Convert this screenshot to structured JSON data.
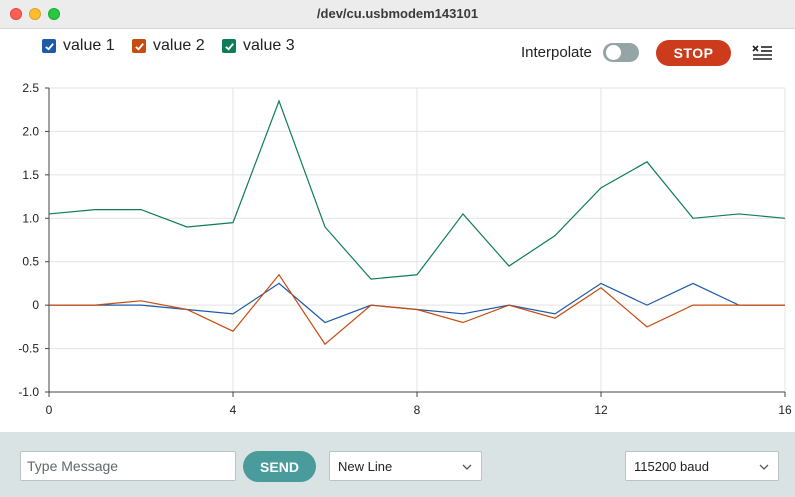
{
  "window": {
    "title": "/dev/cu.usbmodem143101"
  },
  "legend": [
    {
      "label": "value 1",
      "color": "#1d5aa8",
      "checked": true
    },
    {
      "label": "value 2",
      "color": "#c74c12",
      "checked": true
    },
    {
      "label": "value 3",
      "color": "#0e7d57",
      "checked": true
    }
  ],
  "toolbar": {
    "interpolate_label": "Interpolate",
    "interpolate_on": false,
    "stop_label": "STOP",
    "clear_icon": "clear-output-icon"
  },
  "chart_data": {
    "type": "line",
    "xlim": [
      0,
      16
    ],
    "ylim": [
      -1.0,
      2.5
    ],
    "x_ticks": [
      "0",
      "4",
      "8",
      "12",
      "16"
    ],
    "y_ticks": [
      "2.5",
      "2.0",
      "1.5",
      "1.0",
      "0.5",
      "0",
      "-0.5",
      "-1.0"
    ],
    "grid": true,
    "x": [
      0,
      1,
      2,
      3,
      4,
      5,
      6,
      7,
      8,
      9,
      10,
      11,
      12,
      13,
      14,
      15,
      16
    ],
    "series": [
      {
        "name": "value 1",
        "color": "#1d5aa8",
        "values": [
          0,
          0,
          0,
          -0.05,
          -0.1,
          0.25,
          -0.2,
          0,
          -0.05,
          -0.1,
          0,
          -0.1,
          0.25,
          0,
          0.25,
          0,
          0
        ]
      },
      {
        "name": "value 2",
        "color": "#c74c12",
        "values": [
          0,
          0,
          0.05,
          -0.05,
          -0.3,
          0.35,
          -0.45,
          0,
          -0.05,
          -0.2,
          0,
          -0.15,
          0.2,
          -0.25,
          0,
          0,
          0
        ]
      },
      {
        "name": "value 3",
        "color": "#0e7d57",
        "values": [
          1.05,
          1.1,
          1.1,
          0.9,
          0.95,
          2.35,
          0.9,
          0.3,
          0.35,
          1.05,
          0.45,
          0.8,
          1.35,
          1.65,
          1.0,
          1.05,
          1.0
        ]
      }
    ]
  },
  "bottom": {
    "message_placeholder": "Type Message",
    "message_value": "",
    "send_label": "SEND",
    "line_ending": "New Line",
    "baud": "115200 baud"
  }
}
